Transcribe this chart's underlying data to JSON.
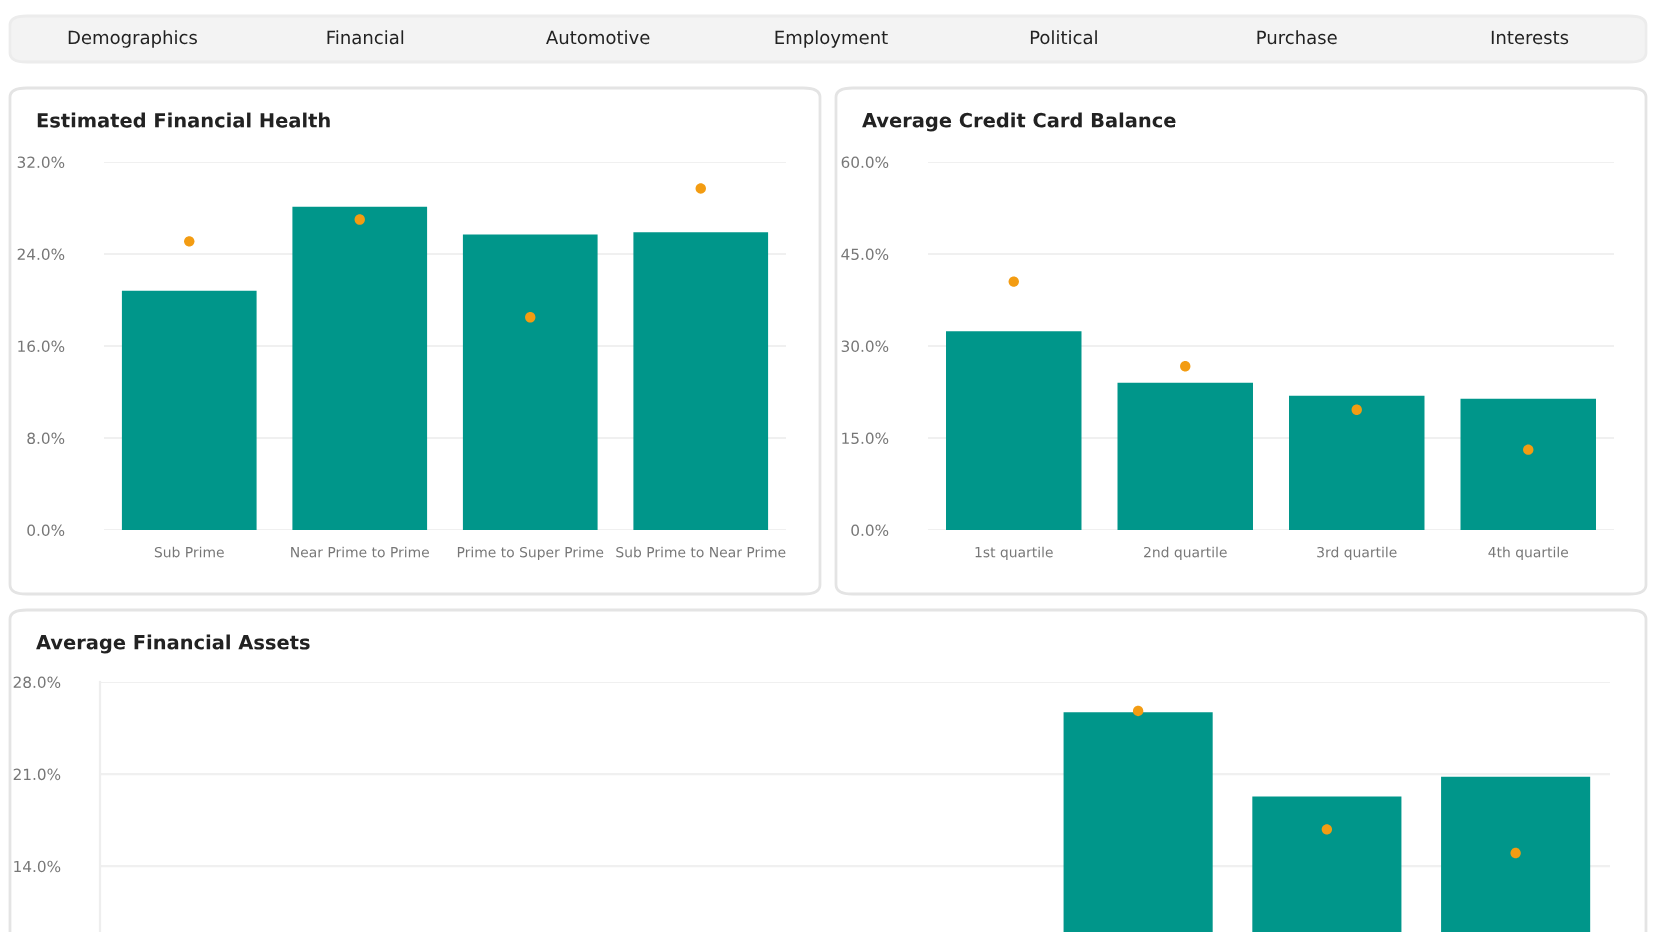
{
  "chart_data": [
    {
      "type": "other",
      "annotations": [
        "Demographics",
        "Financial",
        "Automotive",
        "Employment",
        "Political",
        "Purchase",
        "Interests"
      ]
    },
    {
      "type": "bar",
      "title": "Estimated Financial Health",
      "categories": [
        "Sub Prime",
        "Near Prime to Prime",
        "Prime to Super Prime",
        "Sub Prime to Near Prime"
      ],
      "series": [
        {
          "type": "bar",
          "color": "#00968a",
          "values": [
            20.8,
            28.1,
            25.7,
            25.9
          ]
        },
        {
          "type": "scatter",
          "color": "#f39c12",
          "values": [
            25.1,
            27.0,
            18.5,
            29.7
          ]
        }
      ],
      "ylim": [
        0,
        32
      ],
      "yticks": [
        {
          "value": 0,
          "label": "0.0%"
        },
        {
          "value": 8,
          "label": "8.0%"
        },
        {
          "value": 16,
          "label": "16.0%"
        },
        {
          "value": 24,
          "label": "24.0%"
        },
        {
          "value": 32,
          "label": "32.0%"
        }
      ],
      "grid": "y",
      "marker": "circle"
    },
    {
      "type": "bar",
      "title": "Average Credit Card Balance",
      "categories": [
        "1st quartile",
        "2nd quartile",
        "3rd quartile",
        "4th quartile"
      ],
      "series": [
        {
          "type": "bar",
          "color": "#00968a",
          "values": [
            32.4,
            24.0,
            21.9,
            21.4
          ]
        },
        {
          "type": "scatter",
          "color": "#f39c12",
          "values": [
            40.5,
            26.7,
            19.6,
            13.1
          ]
        }
      ],
      "ylim": [
        0,
        60
      ],
      "yticks": [
        {
          "value": 0,
          "label": "0.0%"
        },
        {
          "value": 15,
          "label": "15.0%"
        },
        {
          "value": 30,
          "label": "30.0%"
        },
        {
          "value": 45,
          "label": "45.0%"
        },
        {
          "value": 60,
          "label": "60.0%"
        }
      ],
      "grid": "y",
      "marker": "circle"
    },
    {
      "type": "bar",
      "title": "Average Financial Assets",
      "categories": [
        null,
        null,
        null,
        null,
        null,
        null,
        null,
        null
      ],
      "series": [
        {
          "type": "bar",
          "color": "#00968a",
          "values": [
            null,
            null,
            null,
            null,
            null,
            25.7,
            19.3,
            20.8
          ]
        },
        {
          "type": "scatter",
          "color": "#f39c12",
          "values": [
            null,
            null,
            null,
            null,
            null,
            25.8,
            16.8,
            15.0
          ]
        }
      ],
      "ylim": [
        9,
        28
      ],
      "yticks": [
        {
          "value": 14,
          "label": "14.0%"
        },
        {
          "value": 21,
          "label": "21.0%"
        },
        {
          "value": 28,
          "label": "28.0%"
        }
      ],
      "grid": "y",
      "marker": "circle"
    }
  ]
}
